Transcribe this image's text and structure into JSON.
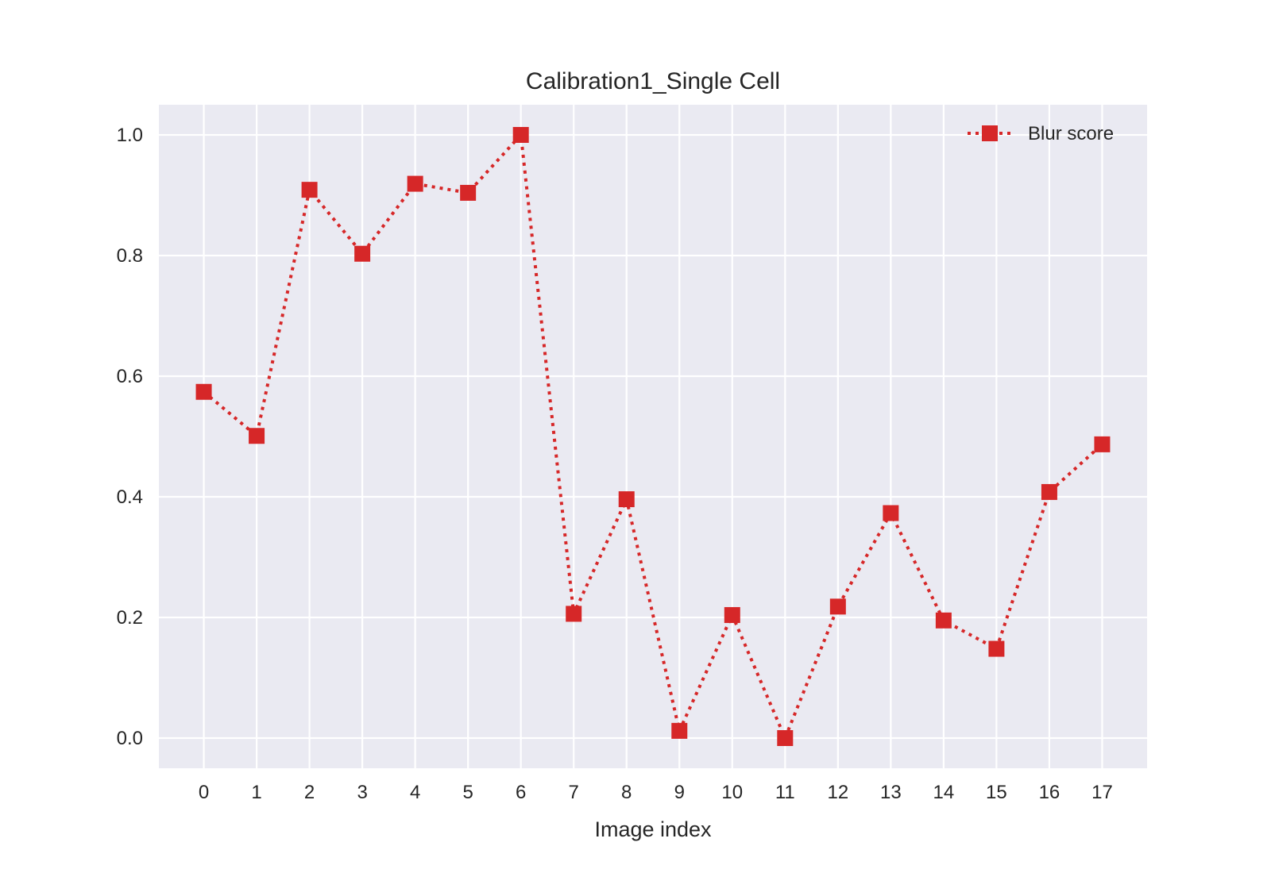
{
  "chart_data": {
    "type": "line",
    "title": "Calibration1_Single Cell",
    "xlabel": "Image index",
    "ylabel": "",
    "x": [
      0,
      1,
      2,
      3,
      4,
      5,
      6,
      7,
      8,
      9,
      10,
      11,
      12,
      13,
      14,
      15,
      16,
      17
    ],
    "series": [
      {
        "name": "Blur score",
        "values": [
          0.574,
          0.501,
          0.909,
          0.803,
          0.919,
          0.904,
          1.0,
          0.206,
          0.396,
          0.012,
          0.204,
          0.0,
          0.218,
          0.373,
          0.195,
          0.148,
          0.408,
          0.487
        ],
        "color": "#d62728",
        "line_style": "dotted",
        "marker": "square"
      }
    ],
    "xlim": [
      -0.85,
      17.85
    ],
    "ylim": [
      -0.05,
      1.05
    ],
    "xticks": [
      "0",
      "1",
      "2",
      "3",
      "4",
      "5",
      "6",
      "7",
      "8",
      "9",
      "10",
      "11",
      "12",
      "13",
      "14",
      "15",
      "16",
      "17"
    ],
    "yticks": [
      "0.0",
      "0.2",
      "0.4",
      "0.6",
      "0.8",
      "1.0"
    ],
    "ytick_values": [
      0.0,
      0.2,
      0.4,
      0.6,
      0.8,
      1.0
    ],
    "grid": true,
    "legend_position": "top-right",
    "background_color": "#eaeaf2",
    "grid_color": "#ffffff"
  }
}
